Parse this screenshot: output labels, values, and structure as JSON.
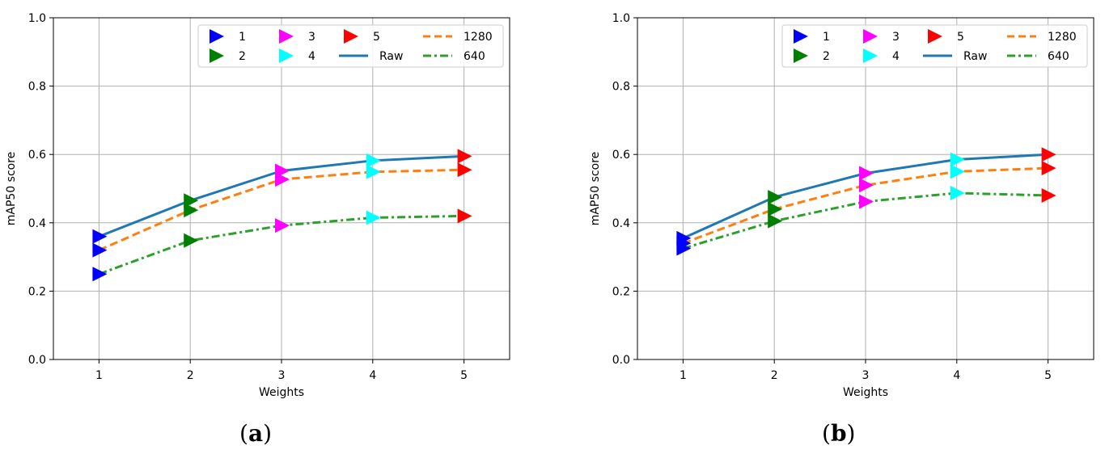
{
  "chart_data": [
    {
      "type": "line",
      "caption_letter": "a",
      "xlabel": "Weights",
      "ylabel": "mAP50 score",
      "xlim": [
        0.5,
        5.5
      ],
      "ylim": [
        0,
        1.0
      ],
      "x_ticks": [
        "1",
        "2",
        "3",
        "4",
        "5"
      ],
      "y_ticks": [
        "0.0",
        "0.2",
        "0.4",
        "0.6",
        "0.8",
        "1.0"
      ],
      "grid": true,
      "legend_position": "top-right",
      "x": [
        1,
        2,
        3,
        4,
        5
      ],
      "series": [
        {
          "name": "Raw",
          "values": [
            0.36,
            0.465,
            0.552,
            0.582,
            0.595
          ],
          "color": "#1f77b4",
          "style": "solid"
        },
        {
          "name": "1280",
          "values": [
            0.32,
            0.437,
            0.527,
            0.549,
            0.555
          ],
          "color": "#ff7f0e",
          "style": "dashed"
        },
        {
          "name": "640",
          "values": [
            0.25,
            0.348,
            0.392,
            0.415,
            0.42
          ],
          "color": "#2ca02c",
          "style": "dashdot"
        }
      ],
      "marker_series": [
        {
          "name": "1",
          "color": "#0000ff"
        },
        {
          "name": "2",
          "color": "#008000"
        },
        {
          "name": "3",
          "color": "#ff00ff"
        },
        {
          "name": "4",
          "color": "#00ffff"
        },
        {
          "name": "5",
          "color": "#ff0000"
        }
      ]
    },
    {
      "type": "line",
      "caption_letter": "b",
      "xlabel": "Weights",
      "ylabel": "mAP50 score",
      "xlim": [
        0.5,
        5.5
      ],
      "ylim": [
        0,
        1.0
      ],
      "x_ticks": [
        "1",
        "2",
        "3",
        "4",
        "5"
      ],
      "y_ticks": [
        "0.0",
        "0.2",
        "0.4",
        "0.6",
        "0.8",
        "1.0"
      ],
      "grid": true,
      "legend_position": "top-right",
      "x": [
        1,
        2,
        3,
        4,
        5
      ],
      "series": [
        {
          "name": "Raw",
          "values": [
            0.355,
            0.475,
            0.545,
            0.585,
            0.6
          ],
          "color": "#1f77b4",
          "style": "solid"
        },
        {
          "name": "1280",
          "values": [
            0.34,
            0.44,
            0.51,
            0.55,
            0.56
          ],
          "color": "#ff7f0e",
          "style": "dashed"
        },
        {
          "name": "640",
          "values": [
            0.325,
            0.405,
            0.462,
            0.487,
            0.48
          ],
          "color": "#2ca02c",
          "style": "dashdot"
        }
      ],
      "marker_series": [
        {
          "name": "1",
          "color": "#0000ff"
        },
        {
          "name": "2",
          "color": "#008000"
        },
        {
          "name": "3",
          "color": "#ff00ff"
        },
        {
          "name": "4",
          "color": "#00ffff"
        },
        {
          "name": "5",
          "color": "#ff0000"
        }
      ]
    }
  ]
}
